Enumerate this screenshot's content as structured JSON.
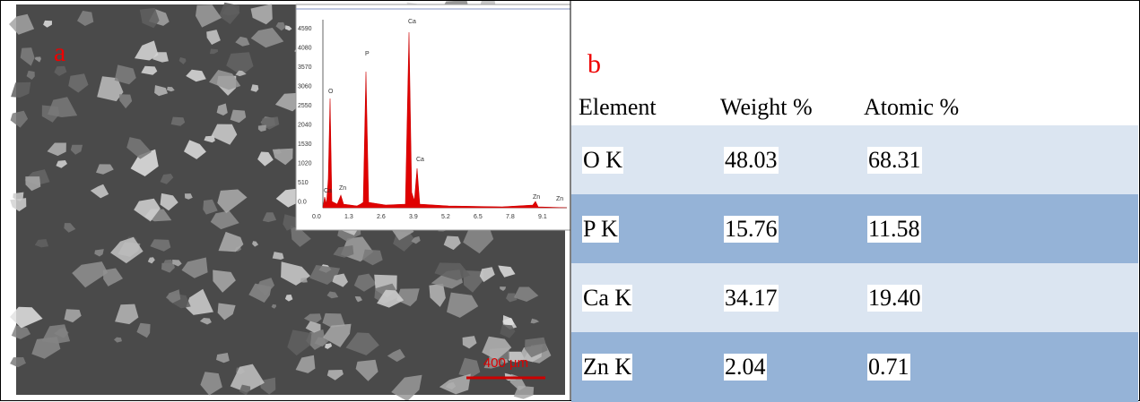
{
  "panel_a": {
    "label": "a",
    "scale_bar": "400 µm",
    "inset": {
      "yticks": [
        "4590",
        "4080",
        "3570",
        "3060",
        "2550",
        "2040",
        "1530",
        "1020",
        "510",
        "0.0"
      ],
      "xticks": [
        "0.0",
        "1.3",
        "2.6",
        "3.9",
        "5.2",
        "6.5",
        "7.8",
        "9.1"
      ],
      "peak_labels": [
        "O",
        "P",
        "Ca",
        "Ca",
        "Ca",
        "Zn",
        "Zn",
        "Zn"
      ]
    }
  },
  "panel_b": {
    "label": "b",
    "table": {
      "header": [
        "Element",
        "Weight %",
        "Atomic %"
      ],
      "rows": [
        [
          "O K",
          "48.03",
          "68.31"
        ],
        [
          "P K",
          "15.76",
          "11.58"
        ],
        [
          "Ca K",
          "34.17",
          "19.40"
        ],
        [
          "Zn K",
          "2.04",
          "0.71"
        ]
      ]
    }
  }
}
